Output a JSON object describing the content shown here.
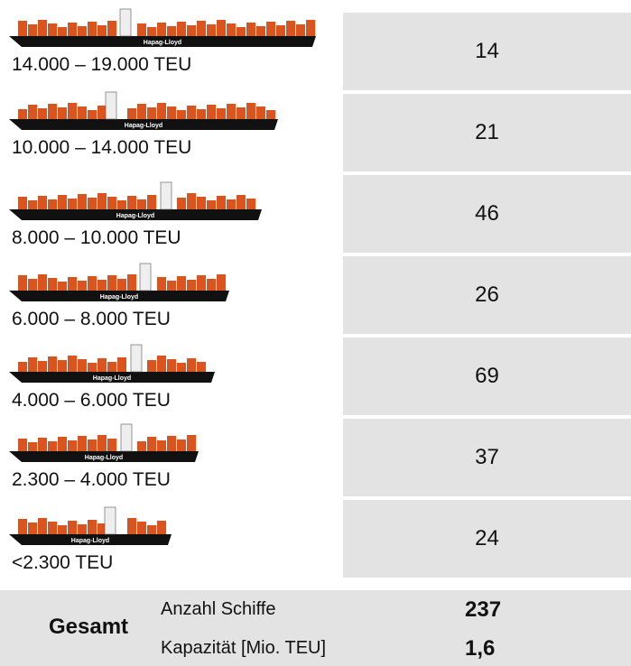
{
  "ship_brand": "Hapag-Lloyd",
  "rows": [
    {
      "label": "14.000 – 19.000 TEU",
      "count": 14
    },
    {
      "label": "10.000 – 14.000 TEU",
      "count": 21
    },
    {
      "label": "8.000 – 10.000 TEU",
      "count": 46
    },
    {
      "label": "6.000 – 8.000 TEU",
      "count": 26
    },
    {
      "label": "4.000 – 6.000 TEU",
      "count": 69
    },
    {
      "label": "2.300 – 4.000 TEU",
      "count": 37
    },
    {
      "label": "<2.300 TEU",
      "count": 24
    }
  ],
  "total": {
    "title": "Gesamt",
    "items": [
      {
        "label": "Anzahl Schiffe",
        "value": 237
      },
      {
        "label": "Kapazität [Mio. TEU]",
        "value": "1,6"
      }
    ]
  }
}
